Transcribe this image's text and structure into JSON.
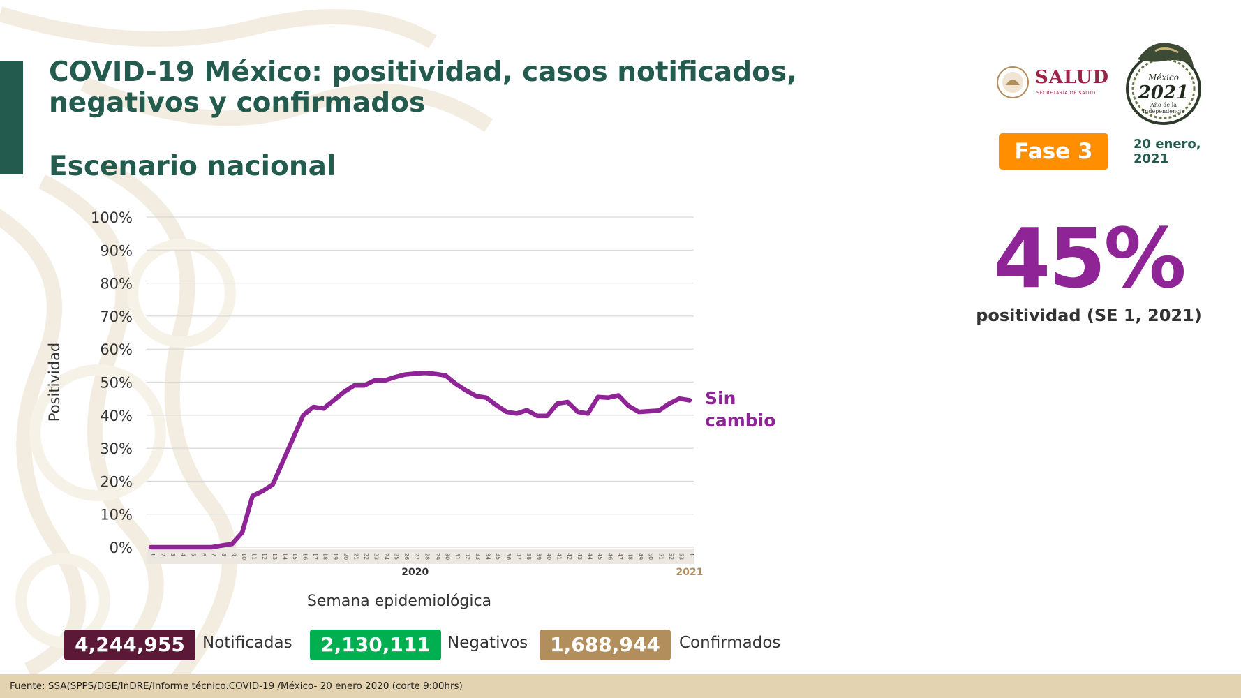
{
  "header": {
    "title": "COVID-19 México: positividad, casos notificados, negativos y confirmados",
    "subtitle": "Escenario nacional"
  },
  "logos": {
    "salud": "SALUD",
    "salud_sub": "SECRETARÍA DE SALUD",
    "seal_text": [
      "México",
      "2021",
      "Año de la",
      "Independencia"
    ]
  },
  "badge": {
    "label": "Fase 3",
    "color": "#ff8f00"
  },
  "date": "20 enero, 2021",
  "highlight": {
    "value": "45%",
    "label": "positividad (SE 1, 2021)"
  },
  "chart_data": {
    "type": "line",
    "ylabel": "Positividad",
    "xlabel": "Semana epidemiológica",
    "ylim": [
      0,
      100
    ],
    "yticks": [
      "0%",
      "10%",
      "20%",
      "30%",
      "40%",
      "50%",
      "60%",
      "70%",
      "80%",
      "90%",
      "100%"
    ],
    "grid": true,
    "year_labels": [
      {
        "label": "2020",
        "at_week": 27
      },
      {
        "label": "2021",
        "at_week": 54
      }
    ],
    "x": [
      1,
      2,
      3,
      4,
      5,
      6,
      7,
      8,
      9,
      10,
      11,
      12,
      13,
      14,
      15,
      16,
      17,
      18,
      19,
      20,
      21,
      22,
      23,
      24,
      25,
      26,
      27,
      28,
      29,
      30,
      31,
      32,
      33,
      34,
      35,
      36,
      37,
      38,
      39,
      40,
      41,
      42,
      43,
      44,
      45,
      46,
      47,
      48,
      49,
      50,
      51,
      52,
      53,
      1
    ],
    "values": [
      0,
      0,
      0,
      0,
      0,
      0,
      0,
      0.5,
      1,
      4.5,
      15.5,
      17,
      19,
      26,
      33,
      40,
      42.5,
      42,
      44.5,
      47,
      49,
      49,
      50.5,
      50.5,
      51.5,
      52.3,
      52.6,
      52.8,
      52.5,
      52,
      49.5,
      47.5,
      45.8,
      45.3,
      43,
      41,
      40.5,
      41.5,
      39.8,
      39.8,
      43.5,
      44,
      41,
      40.5,
      45.5,
      45.3,
      46,
      42.8,
      41,
      41.2,
      41.4,
      43.5,
      45,
      44.5
    ],
    "line_color": "#8e2496",
    "annotation": "Sin cambio"
  },
  "stats": [
    {
      "value": "4,244,955",
      "label": "Notificadas",
      "color": "#5b1837"
    },
    {
      "value": "2,130,111",
      "label": "Negativos",
      "color": "#00b050"
    },
    {
      "value": "1,688,944",
      "label": "Confirmados",
      "color": "#b38e5d"
    }
  ],
  "footer": "Fuente: SSA(SPPS/DGE/InDRE/Informe técnico.COVID-19 /México- 20 enero 2020 (corte 9:00hrs)"
}
